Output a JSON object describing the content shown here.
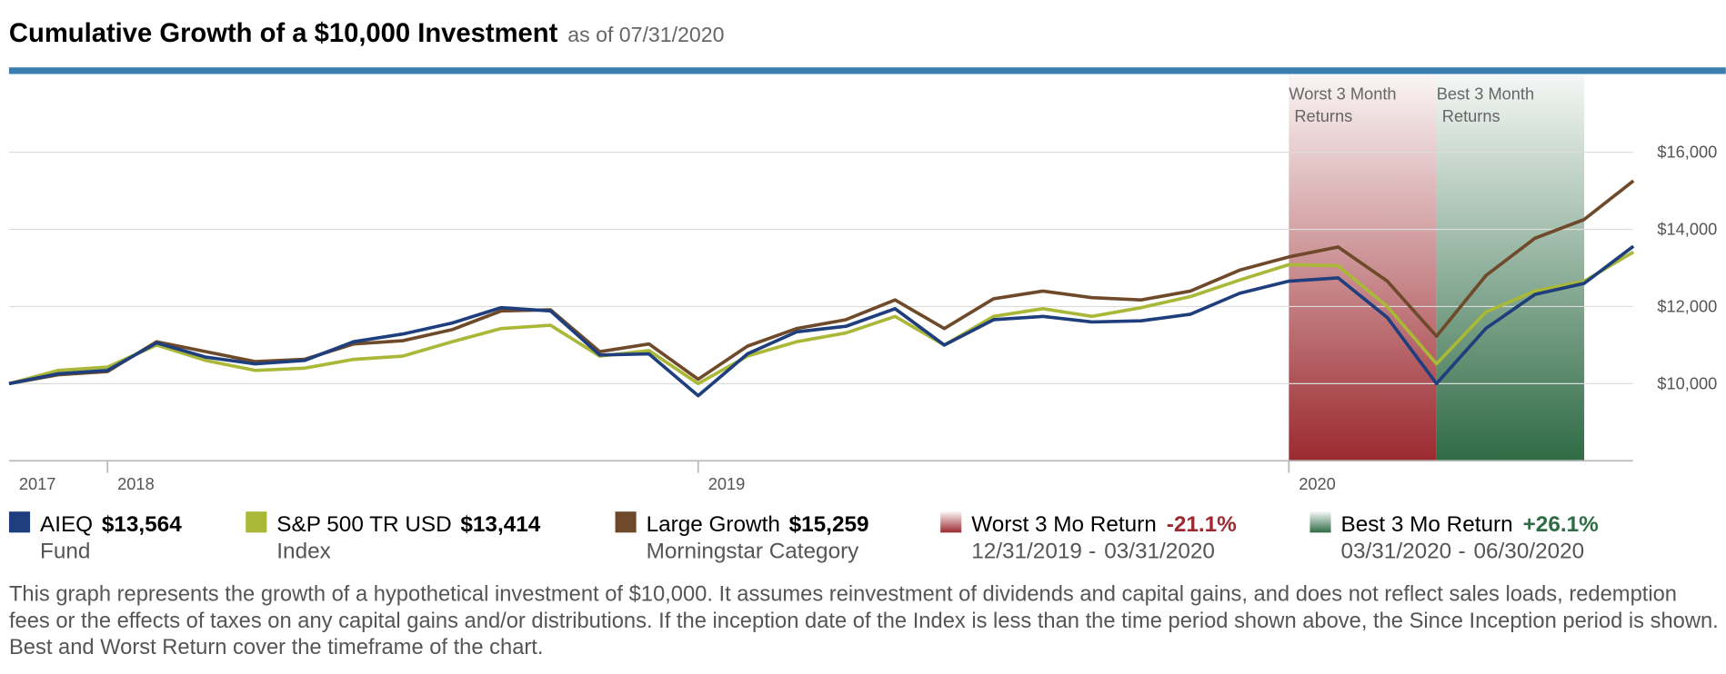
{
  "chart_data": {
    "type": "line",
    "title": "Cumulative Growth of a $10,000 Investment",
    "subtitle": "as of 07/31/2020",
    "categories": [
      "2017",
      null,
      "2018",
      null,
      null,
      null,
      null,
      null,
      null,
      null,
      null,
      null,
      null,
      null,
      "2019",
      null,
      null,
      null,
      null,
      null,
      null,
      null,
      null,
      null,
      null,
      null,
      "2020",
      null,
      null,
      null,
      null,
      null,
      null,
      null
    ],
    "ylim": [
      8000,
      18000
    ],
    "yticks": [
      {
        "value": 10000,
        "label": "$10,000"
      },
      {
        "value": 12000,
        "label": "$12,000"
      },
      {
        "value": 14000,
        "label": "$14,000"
      },
      {
        "value": 16000,
        "label": "$16,000"
      }
    ],
    "grid": true,
    "series": [
      {
        "name": "AIEQ",
        "legend_value": "$13,564",
        "role": "Fund",
        "color": "#1f3e7e",
        "values": [
          10000,
          10257,
          10343,
          11057,
          10686,
          10514,
          10600,
          11086,
          11286,
          11571,
          11971,
          11886,
          10743,
          10771,
          9686,
          10771,
          11343,
          11486,
          11943,
          11000,
          11657,
          11743,
          11600,
          11629,
          11800,
          12343,
          12657,
          12743,
          11714,
          10000,
          11429,
          12314,
          12600,
          13564
        ]
      },
      {
        "name": "S&P 500 TR USD",
        "legend_value": "$13,414",
        "role": "Index",
        "color": "#a9b837",
        "values": [
          10000,
          10343,
          10429,
          11000,
          10600,
          10343,
          10400,
          10629,
          10714,
          11086,
          11429,
          11514,
          10714,
          10857,
          10000,
          10714,
          11086,
          11314,
          11743,
          11000,
          11743,
          11943,
          11743,
          11971,
          12257,
          12686,
          13086,
          13057,
          12000,
          10514,
          11857,
          12400,
          12657,
          13414
        ]
      },
      {
        "name": "Large Growth",
        "legend_value": "$15,259",
        "role": "Morningstar Category",
        "color": "#6f4a2a",
        "values": [
          10000,
          10229,
          10314,
          11086,
          10829,
          10571,
          10629,
          11029,
          11114,
          11400,
          11886,
          11914,
          10829,
          11029,
          10114,
          10971,
          11429,
          11657,
          12171,
          11429,
          12200,
          12400,
          12229,
          12171,
          12400,
          12943,
          13286,
          13543,
          12657,
          11229,
          12800,
          13771,
          14257,
          15259
        ]
      }
    ],
    "periods": [
      {
        "title": "Worst 3 Month Returns",
        "legend": "Worst 3 Mo Return",
        "return_label": "-21.1%",
        "from": "12/31/2019",
        "to": "03/31/2020",
        "color": "#9b2a30"
      },
      {
        "title": "Best 3 Month Returns",
        "legend": "Best 3 Mo Return",
        "return_label": "+26.1%",
        "from": "03/31/2020",
        "to": "06/30/2020",
        "color": "#2f6b45"
      }
    ],
    "footnote": "This graph represents the growth of a hypothetical investment of $10,000. It assumes reinvestment of dividends and capital gains, and does not reflect sales loads, redemption fees or the effects of taxes on any capital gains and/or distributions. If the inception date of the Index is less than the time period shown above, the Since Inception period is shown. Best and Worst Return cover the timeframe of the chart."
  }
}
